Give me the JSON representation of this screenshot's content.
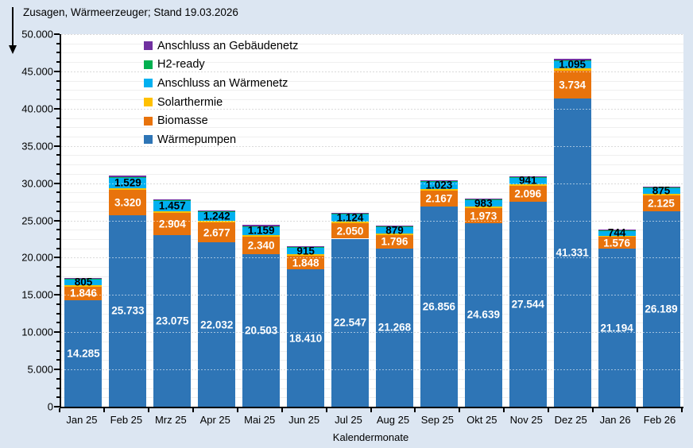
{
  "header": {
    "title": "Zusagen, Wärmeerzeuger; Stand 19.03.2026"
  },
  "chart_data": {
    "type": "bar",
    "stacked": true,
    "title": "Zusagen, Wärmeerzeuger; Stand 19.03.2026",
    "xlabel": "Kalendermonate",
    "ylabel": "",
    "ylim": [
      0,
      50000
    ],
    "y_major_step": 5000,
    "y_minor_step": 1250,
    "y_tick_labels": [
      "0",
      "5.000",
      "10.000",
      "15.000",
      "20.000",
      "25.000",
      "30.000",
      "35.000",
      "40.000",
      "45.000",
      "50.000"
    ],
    "grid": "major dotted gray, minor faint solid",
    "legend_position": "inside top-left",
    "number_format": "de-DE (dot thousands separator)",
    "categories": [
      "Jan 25",
      "Feb 25",
      "Mrz 25",
      "Apr 25",
      "Mai 25",
      "Jun 25",
      "Jul 25",
      "Aug 25",
      "Sep 25",
      "Okt 25",
      "Nov 25",
      "Dez 25",
      "Jan 26",
      "Feb 26"
    ],
    "series": [
      {
        "name": "Wärmepumpen",
        "slug": "waermepumpen",
        "color": "#2E75B6",
        "show_labels": true,
        "label_color": "#FFFFFF",
        "estimated": false,
        "values": [
          14285,
          25733,
          23075,
          22032,
          20503,
          18410,
          22547,
          21268,
          26856,
          24639,
          27544,
          41331,
          21194,
          26189
        ]
      },
      {
        "name": "Biomasse",
        "slug": "biomasse",
        "color": "#E8730C",
        "show_labels": true,
        "label_color": "#FFFFFF",
        "estimated": false,
        "values": [
          1846,
          3320,
          2904,
          2677,
          2340,
          1848,
          2050,
          1796,
          2167,
          1973,
          2096,
          3734,
          1576,
          2125
        ]
      },
      {
        "name": "Solarthermie",
        "slug": "solarthermie",
        "color": "#FFC000",
        "show_labels": false,
        "estimated": true,
        "values": [
          210,
          260,
          240,
          230,
          220,
          200,
          210,
          200,
          220,
          210,
          220,
          300,
          190,
          210
        ]
      },
      {
        "name": "Anschluss an Wärmenetz",
        "slug": "anschluss-waermenetz",
        "color": "#00B0F0",
        "show_labels": true,
        "label_color": "#000000",
        "estimated": false,
        "values": [
          805,
          1529,
          1457,
          1242,
          1159,
          915,
          1124,
          879,
          1023,
          983,
          941,
          1095,
          744,
          875
        ]
      },
      {
        "name": "H2-ready",
        "slug": "h2-ready",
        "color": "#00B050",
        "show_labels": false,
        "estimated": true,
        "values": [
          15,
          15,
          15,
          15,
          15,
          15,
          15,
          15,
          15,
          15,
          15,
          20,
          15,
          15
        ]
      },
      {
        "name": "Anschluss an Gebäudenetz",
        "slug": "anschluss-gebaeudenetz",
        "color": "#7030A0",
        "show_labels": false,
        "estimated": true,
        "values": [
          120,
          150,
          140,
          130,
          130,
          110,
          120,
          110,
          130,
          120,
          130,
          200,
          100,
          120
        ]
      }
    ],
    "estimated_series_note_fields": [
      "Solarthermie",
      "H2-ready",
      "Anschluss an Gebäudenetz"
    ],
    "legend_items": [
      {
        "label": "Anschluss an Gebäudenetz",
        "color": "#7030A0"
      },
      {
        "label": "H2-ready",
        "color": "#00B050"
      },
      {
        "label": "Anschluss an Wärmenetz",
        "color": "#00B0F0"
      },
      {
        "label": "Solarthermie",
        "color": "#FFC000"
      },
      {
        "label": "Biomasse",
        "color": "#E8730C"
      },
      {
        "label": "Wärmepumpen",
        "color": "#2E75B6"
      }
    ]
  },
  "colors": {
    "page_background": "#DCE6F2",
    "plot_background": "#FFFFFF",
    "axis": "#000000",
    "grid_major": "#ACACAC",
    "grid_minor": "#EFEFEF"
  }
}
